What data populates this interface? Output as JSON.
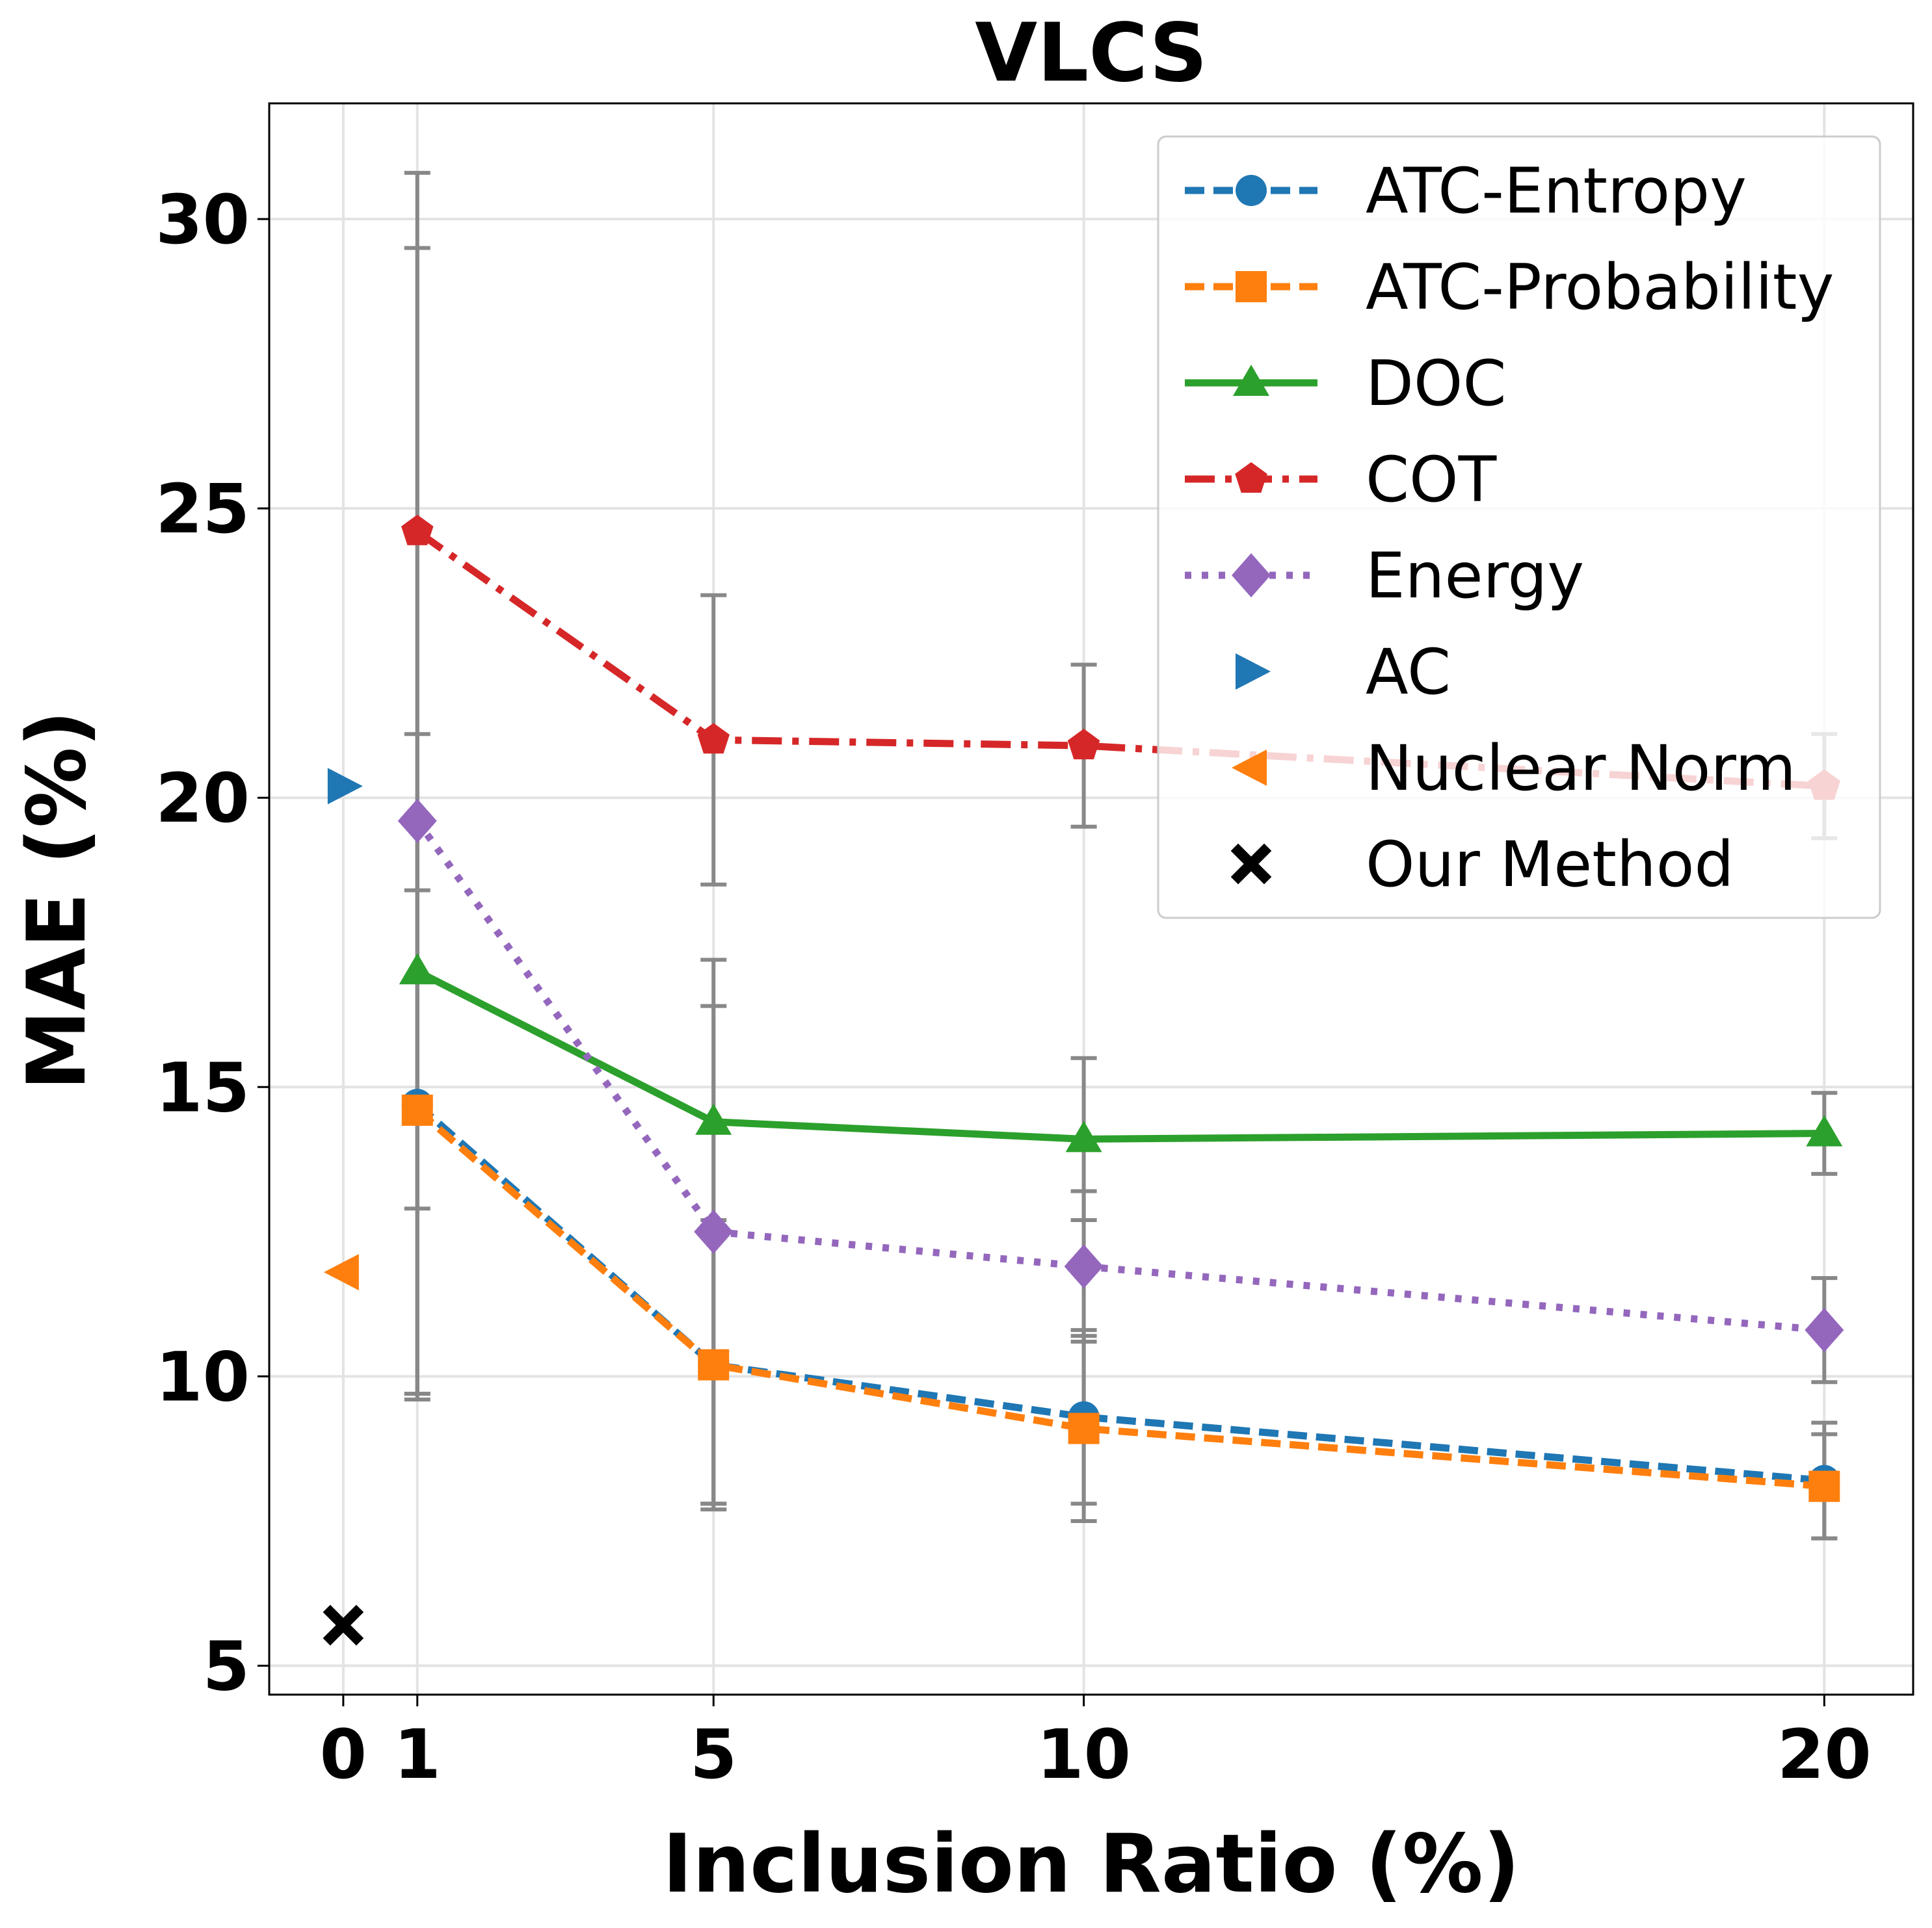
{
  "chart_data": {
    "type": "line",
    "title": "VLCS",
    "xlabel": "Inclusion Ratio (%)",
    "ylabel": "MAE (%)",
    "xlim": [
      -1,
      21.2
    ],
    "ylim": [
      4.5,
      32
    ],
    "xticks": [
      0,
      1,
      5,
      10,
      20
    ],
    "xtick_labels": [
      "0",
      "1",
      "5",
      "10",
      "20"
    ],
    "yticks": [
      5,
      10,
      15,
      20,
      25,
      30
    ],
    "ytick_labels": [
      "5",
      "10",
      "15",
      "20",
      "25",
      "30"
    ],
    "grid": true,
    "legend_position": "top-right",
    "series": [
      {
        "name": "ATC-Entropy",
        "color": "#1f77b4",
        "line": "dashed",
        "marker": "circle",
        "x": [
          1,
          5,
          10,
          20
        ],
        "y": [
          14.7,
          10.2,
          9.3,
          8.2
        ],
        "err": [
          5.0,
          2.4,
          1.5,
          1.0
        ]
      },
      {
        "name": "ATC-Probability",
        "color": "#ff7f0e",
        "line": "dashed",
        "marker": "square",
        "x": [
          1,
          5,
          10,
          20
        ],
        "y": [
          14.6,
          10.2,
          9.1,
          8.1
        ],
        "err": [
          5.0,
          2.5,
          1.6,
          0.9
        ]
      },
      {
        "name": "DOC",
        "color": "#2ca02c",
        "line": "solid",
        "marker": "triangle-up",
        "x": [
          1,
          5,
          10,
          20
        ],
        "y": [
          17.0,
          14.4,
          14.1,
          14.2
        ],
        "err": [
          4.1,
          2.0,
          1.4,
          0.7
        ]
      },
      {
        "name": "COT",
        "color": "#d62728",
        "line": "dashdot",
        "marker": "pentagon",
        "x": [
          1,
          5,
          10,
          20
        ],
        "y": [
          24.6,
          21.0,
          20.9,
          20.2
        ],
        "err": [
          6.2,
          2.5,
          1.4,
          0.9
        ]
      },
      {
        "name": "Energy",
        "color": "#9467bd",
        "line": "dotted",
        "marker": "diamond",
        "x": [
          1,
          5,
          10,
          20
        ],
        "y": [
          19.6,
          12.5,
          11.9,
          10.8
        ],
        "err": [
          9.9,
          4.7,
          1.3,
          0.9
        ]
      },
      {
        "name": "AC",
        "color": "#1f77b4",
        "line": "none",
        "marker": "triangle-right",
        "x": [
          0
        ],
        "y": [
          20.2
        ],
        "err": null
      },
      {
        "name": "Nuclear Norm",
        "color": "#ff7f0e",
        "line": "none",
        "marker": "triangle-left",
        "x": [
          0
        ],
        "y": [
          11.8
        ],
        "err": null
      },
      {
        "name": "Our Method",
        "color": "#000000",
        "line": "none",
        "marker": "x",
        "x": [
          0
        ],
        "y": [
          5.7
        ],
        "err": null
      }
    ]
  }
}
